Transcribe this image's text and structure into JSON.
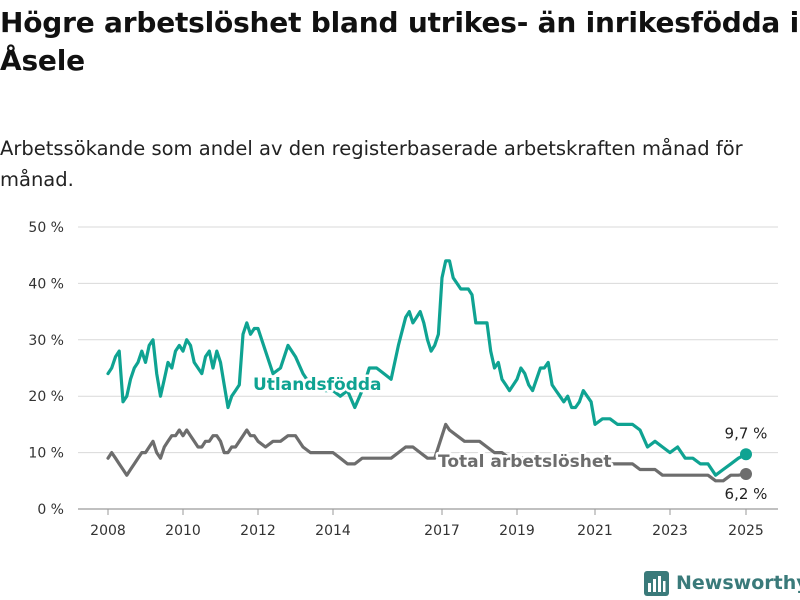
{
  "header": {
    "title": "Högre arbetslöshet bland utrikes- än inrikesfödda i Åsele",
    "subtitle": "Arbetssökande som andel av den registerbaserade arbetskraften månad för månad."
  },
  "brand": {
    "name": "Newsworthy",
    "color": "#3a7a7a"
  },
  "chart_data": {
    "type": "line",
    "title": "Högre arbetslöshet bland utrikes- än inrikesfödda i Åsele",
    "subtitle": "Arbetssökande som andel av den registerbaserade arbetskraften månad för månad.",
    "xlabel": "",
    "ylabel": "",
    "xlim": [
      2007.7,
      2025.7
    ],
    "ylim": [
      0,
      50
    ],
    "y_ticks": [
      0,
      10,
      20,
      30,
      40,
      50
    ],
    "y_tick_labels": [
      "0 %",
      "10 %",
      "20 %",
      "30 %",
      "40 %",
      "50 %"
    ],
    "x_ticks": [
      2008,
      2010,
      2012,
      2014,
      2017,
      2019,
      2021,
      2023,
      2025
    ],
    "x_tick_labels": [
      "2008",
      "2010",
      "2012",
      "2014",
      "2017",
      "2019",
      "2021",
      "2023",
      "2025"
    ],
    "grid": "horizontal",
    "legend": "inline labels",
    "series": [
      {
        "name": "Utlandsfödda",
        "color": "#0fa392",
        "last_value_label": "9,7 %",
        "points": [
          [
            2008.0,
            24
          ],
          [
            2008.1,
            25
          ],
          [
            2008.2,
            27
          ],
          [
            2008.3,
            28
          ],
          [
            2008.4,
            19
          ],
          [
            2008.5,
            20
          ],
          [
            2008.6,
            23
          ],
          [
            2008.7,
            25
          ],
          [
            2008.8,
            26
          ],
          [
            2008.9,
            28
          ],
          [
            2009.0,
            26
          ],
          [
            2009.1,
            29
          ],
          [
            2009.2,
            30
          ],
          [
            2009.3,
            24
          ],
          [
            2009.4,
            20
          ],
          [
            2009.5,
            23
          ],
          [
            2009.6,
            26
          ],
          [
            2009.7,
            25
          ],
          [
            2009.8,
            28
          ],
          [
            2009.9,
            29
          ],
          [
            2010.0,
            28
          ],
          [
            2010.1,
            30
          ],
          [
            2010.2,
            29
          ],
          [
            2010.3,
            26
          ],
          [
            2010.4,
            25
          ],
          [
            2010.5,
            24
          ],
          [
            2010.6,
            27
          ],
          [
            2010.7,
            28
          ],
          [
            2010.8,
            25
          ],
          [
            2010.9,
            28
          ],
          [
            2011.0,
            26
          ],
          [
            2011.1,
            22
          ],
          [
            2011.2,
            18
          ],
          [
            2011.3,
            20
          ],
          [
            2011.4,
            21
          ],
          [
            2011.5,
            22
          ],
          [
            2011.6,
            31
          ],
          [
            2011.7,
            33
          ],
          [
            2011.8,
            31
          ],
          [
            2011.9,
            32
          ],
          [
            2012.0,
            32
          ],
          [
            2012.2,
            28
          ],
          [
            2012.4,
            24
          ],
          [
            2012.6,
            25
          ],
          [
            2012.8,
            29
          ],
          [
            2013.0,
            27
          ],
          [
            2013.2,
            24
          ],
          [
            2013.4,
            22
          ],
          [
            2013.6,
            22
          ],
          [
            2013.8,
            21
          ],
          [
            2014.0,
            21
          ],
          [
            2014.2,
            20
          ],
          [
            2014.4,
            21
          ],
          [
            2014.6,
            18
          ],
          [
            2014.8,
            21
          ],
          [
            2015.0,
            25
          ],
          [
            2015.2,
            25
          ],
          [
            2015.4,
            24
          ],
          [
            2015.6,
            23
          ],
          [
            2015.8,
            29
          ],
          [
            2016.0,
            34
          ],
          [
            2016.1,
            35
          ],
          [
            2016.2,
            33
          ],
          [
            2016.3,
            34
          ],
          [
            2016.4,
            35
          ],
          [
            2016.5,
            33
          ],
          [
            2016.6,
            30
          ],
          [
            2016.7,
            28
          ],
          [
            2016.8,
            29
          ],
          [
            2016.9,
            31
          ],
          [
            2017.0,
            41
          ],
          [
            2017.1,
            44
          ],
          [
            2017.2,
            44
          ],
          [
            2017.3,
            41
          ],
          [
            2017.4,
            40
          ],
          [
            2017.5,
            39
          ],
          [
            2017.6,
            39
          ],
          [
            2017.7,
            39
          ],
          [
            2017.8,
            38
          ],
          [
            2017.9,
            33
          ],
          [
            2018.0,
            33
          ],
          [
            2018.1,
            33
          ],
          [
            2018.2,
            33
          ],
          [
            2018.3,
            28
          ],
          [
            2018.4,
            25
          ],
          [
            2018.5,
            26
          ],
          [
            2018.6,
            23
          ],
          [
            2018.7,
            22
          ],
          [
            2018.8,
            21
          ],
          [
            2018.9,
            22
          ],
          [
            2019.0,
            23
          ],
          [
            2019.1,
            25
          ],
          [
            2019.2,
            24
          ],
          [
            2019.3,
            22
          ],
          [
            2019.4,
            21
          ],
          [
            2019.5,
            23
          ],
          [
            2019.6,
            25
          ],
          [
            2019.7,
            25
          ],
          [
            2019.8,
            26
          ],
          [
            2019.9,
            22
          ],
          [
            2020.0,
            21
          ],
          [
            2020.1,
            20
          ],
          [
            2020.2,
            19
          ],
          [
            2020.3,
            20
          ],
          [
            2020.4,
            18
          ],
          [
            2020.5,
            18
          ],
          [
            2020.6,
            19
          ],
          [
            2020.7,
            21
          ],
          [
            2020.8,
            20
          ],
          [
            2020.9,
            19
          ],
          [
            2021.0,
            15
          ],
          [
            2021.2,
            16
          ],
          [
            2021.4,
            16
          ],
          [
            2021.6,
            15
          ],
          [
            2021.8,
            15
          ],
          [
            2022.0,
            15
          ],
          [
            2022.2,
            14
          ],
          [
            2022.4,
            11
          ],
          [
            2022.6,
            12
          ],
          [
            2022.8,
            11
          ],
          [
            2023.0,
            10
          ],
          [
            2023.2,
            11
          ],
          [
            2023.4,
            9
          ],
          [
            2023.6,
            9
          ],
          [
            2023.8,
            8
          ],
          [
            2024.0,
            8
          ],
          [
            2024.2,
            6
          ],
          [
            2024.4,
            7
          ],
          [
            2024.6,
            8
          ],
          [
            2024.8,
            9
          ],
          [
            2025.0,
            9.7
          ]
        ]
      },
      {
        "name": "Total arbetslöshet",
        "color": "#6d6d6d",
        "last_value_label": "6,2 %",
        "points": [
          [
            2008.0,
            9
          ],
          [
            2008.1,
            10
          ],
          [
            2008.2,
            9
          ],
          [
            2008.3,
            8
          ],
          [
            2008.4,
            7
          ],
          [
            2008.5,
            6
          ],
          [
            2008.6,
            7
          ],
          [
            2008.7,
            8
          ],
          [
            2008.8,
            9
          ],
          [
            2008.9,
            10
          ],
          [
            2009.0,
            10
          ],
          [
            2009.1,
            11
          ],
          [
            2009.2,
            12
          ],
          [
            2009.3,
            10
          ],
          [
            2009.4,
            9
          ],
          [
            2009.5,
            11
          ],
          [
            2009.6,
            12
          ],
          [
            2009.7,
            13
          ],
          [
            2009.8,
            13
          ],
          [
            2009.9,
            14
          ],
          [
            2010.0,
            13
          ],
          [
            2010.1,
            14
          ],
          [
            2010.2,
            13
          ],
          [
            2010.3,
            12
          ],
          [
            2010.4,
            11
          ],
          [
            2010.5,
            11
          ],
          [
            2010.6,
            12
          ],
          [
            2010.7,
            12
          ],
          [
            2010.8,
            13
          ],
          [
            2010.9,
            13
          ],
          [
            2011.0,
            12
          ],
          [
            2011.1,
            10
          ],
          [
            2011.2,
            10
          ],
          [
            2011.3,
            11
          ],
          [
            2011.4,
            11
          ],
          [
            2011.5,
            12
          ],
          [
            2011.6,
            13
          ],
          [
            2011.7,
            14
          ],
          [
            2011.8,
            13
          ],
          [
            2011.9,
            13
          ],
          [
            2012.0,
            12
          ],
          [
            2012.2,
            11
          ],
          [
            2012.4,
            12
          ],
          [
            2012.6,
            12
          ],
          [
            2012.8,
            13
          ],
          [
            2013.0,
            13
          ],
          [
            2013.2,
            11
          ],
          [
            2013.4,
            10
          ],
          [
            2013.6,
            10
          ],
          [
            2013.8,
            10
          ],
          [
            2014.0,
            10
          ],
          [
            2014.2,
            9
          ],
          [
            2014.4,
            8
          ],
          [
            2014.6,
            8
          ],
          [
            2014.8,
            9
          ],
          [
            2015.0,
            9
          ],
          [
            2015.2,
            9
          ],
          [
            2015.4,
            9
          ],
          [
            2015.6,
            9
          ],
          [
            2015.8,
            10
          ],
          [
            2016.0,
            11
          ],
          [
            2016.2,
            11
          ],
          [
            2016.4,
            10
          ],
          [
            2016.6,
            9
          ],
          [
            2016.8,
            9
          ],
          [
            2017.0,
            13
          ],
          [
            2017.1,
            15
          ],
          [
            2017.2,
            14
          ],
          [
            2017.4,
            13
          ],
          [
            2017.6,
            12
          ],
          [
            2017.8,
            12
          ],
          [
            2018.0,
            12
          ],
          [
            2018.2,
            11
          ],
          [
            2018.4,
            10
          ],
          [
            2018.6,
            10
          ],
          [
            2018.8,
            9
          ],
          [
            2019.0,
            9
          ],
          [
            2019.2,
            9
          ],
          [
            2019.4,
            9
          ],
          [
            2019.6,
            9
          ],
          [
            2019.8,
            9
          ],
          [
            2020.0,
            9
          ],
          [
            2020.2,
            9
          ],
          [
            2020.4,
            8
          ],
          [
            2020.6,
            8
          ],
          [
            2020.8,
            9
          ],
          [
            2021.0,
            8
          ],
          [
            2021.2,
            8
          ],
          [
            2021.4,
            8
          ],
          [
            2021.6,
            8
          ],
          [
            2021.8,
            8
          ],
          [
            2022.0,
            8
          ],
          [
            2022.2,
            7
          ],
          [
            2022.4,
            7
          ],
          [
            2022.6,
            7
          ],
          [
            2022.8,
            6
          ],
          [
            2023.0,
            6
          ],
          [
            2023.2,
            6
          ],
          [
            2023.4,
            6
          ],
          [
            2023.6,
            6
          ],
          [
            2023.8,
            6
          ],
          [
            2024.0,
            6
          ],
          [
            2024.2,
            5
          ],
          [
            2024.4,
            5
          ],
          [
            2024.6,
            6
          ],
          [
            2024.8,
            6
          ],
          [
            2025.0,
            6.2
          ]
        ]
      }
    ],
    "annotations": [
      {
        "text": "Utlandsfödda",
        "series": "Utlandsfödda"
      },
      {
        "text": "Total arbetslöshet",
        "series": "Total arbetslöshet"
      }
    ]
  }
}
